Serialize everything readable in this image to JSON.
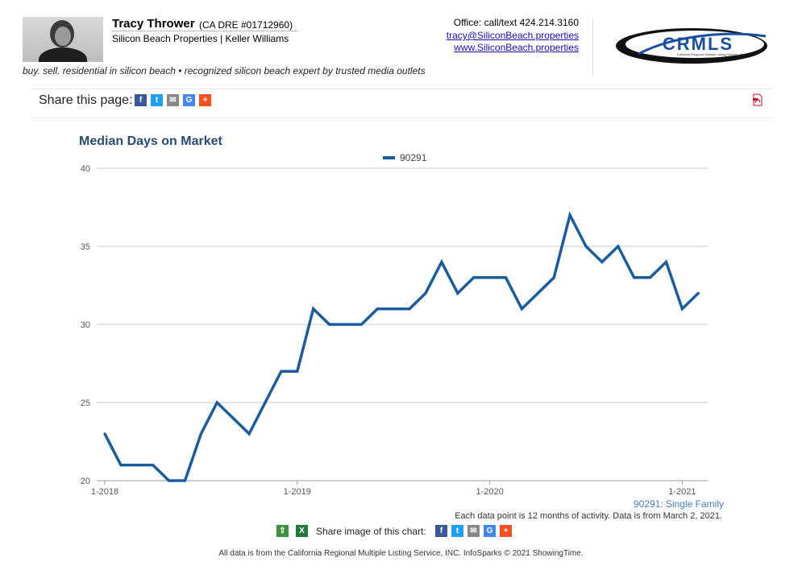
{
  "agent": {
    "name": "Tracy Thrower",
    "dre": "(CA DRE #01712960)",
    "company": "Silicon Beach Properties | Keller Williams",
    "office": "Office: call/text 424.214.3160",
    "email": "tracy@SiliconBeach.properties",
    "website": "www.SiliconBeach.properties",
    "tagline": "buy. sell. residential in silicon beach • recognized silicon beach expert by trusted media outlets",
    "logo_text": "CRMLS",
    "logo_subtext": "California Regional Multiple Listing Service, Inc."
  },
  "share": {
    "label": "Share this page:",
    "icons": [
      "facebook-icon",
      "twitter-icon",
      "email-icon",
      "google-icon",
      "plus-icon"
    ],
    "image_label": "Share image of this chart:"
  },
  "chart_data": {
    "type": "line",
    "title": "Median Days on Market",
    "xlabel": "",
    "ylabel": "",
    "ylim": [
      20,
      40
    ],
    "yticks": [
      20,
      25,
      30,
      35,
      40
    ],
    "xtick_labels": [
      "1-2018",
      "1-2019",
      "1-2020",
      "1-2021"
    ],
    "x": [
      "2018-01",
      "2018-02",
      "2018-03",
      "2018-04",
      "2018-05",
      "2018-06",
      "2018-07",
      "2018-08",
      "2018-09",
      "2018-10",
      "2018-11",
      "2018-12",
      "2019-01",
      "2019-02",
      "2019-03",
      "2019-04",
      "2019-05",
      "2019-06",
      "2019-07",
      "2019-08",
      "2019-09",
      "2019-10",
      "2019-11",
      "2019-12",
      "2020-01",
      "2020-02",
      "2020-03",
      "2020-04",
      "2020-05",
      "2020-06",
      "2020-07",
      "2020-08",
      "2020-09",
      "2020-10",
      "2020-11",
      "2020-12",
      "2021-01",
      "2021-02"
    ],
    "series": [
      {
        "name": "90291",
        "color": "#1a5d9e",
        "values": [
          23,
          21,
          21,
          21,
          20,
          20,
          23,
          25,
          24,
          23,
          25,
          27,
          27,
          31,
          30,
          30,
          30,
          31,
          31,
          31,
          32,
          34,
          32,
          33,
          33,
          33,
          31,
          32,
          33,
          37,
          35,
          34,
          35,
          33,
          33,
          34,
          31,
          32
        ]
      }
    ],
    "legend": "top-center",
    "grid": true,
    "subtitle": "90291: Single Family",
    "note": "Each data point is 12 months of activity. Data is from March 2, 2021."
  },
  "footer": "All data is from the California Regional Multiple Listing Service, INC. InfoSparks © 2021 ShowingTime.",
  "colors": {
    "title": "#2b4a6f",
    "line": "#1a5d9e",
    "facebook": "#3b5998",
    "twitter": "#1da1f2",
    "email": "#888888",
    "google": "#4285f4",
    "plus": "#f4511e"
  }
}
